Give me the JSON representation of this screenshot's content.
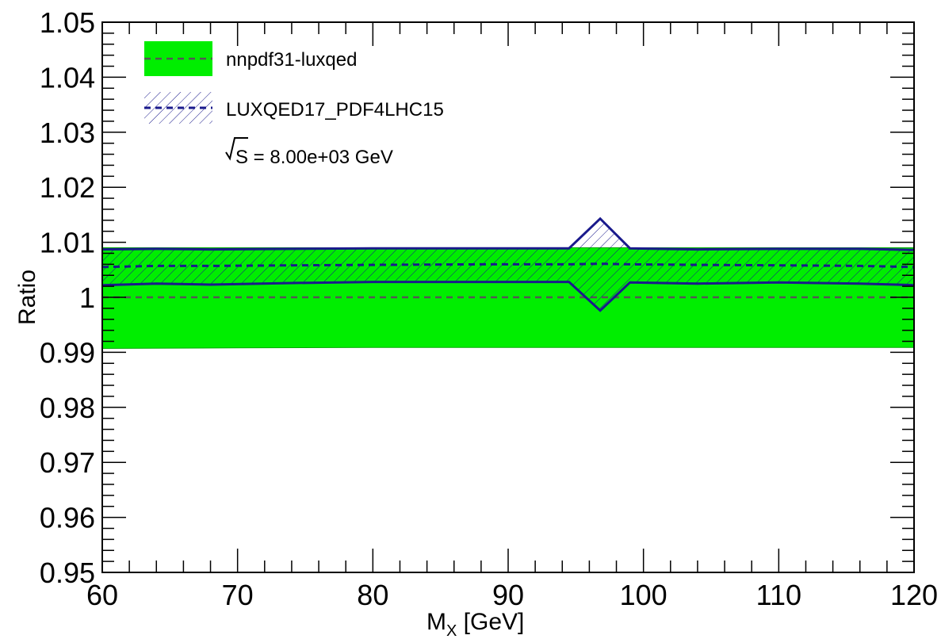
{
  "chart_data": {
    "type": "line",
    "xlabel_main": "M",
    "xlabel_sub": "X",
    "xlabel_rest": " [GeV]",
    "ylabel": "Ratio",
    "xlim": [
      60,
      120
    ],
    "ylim": [
      0.95,
      1.05
    ],
    "x_ticks": [
      60,
      70,
      80,
      90,
      100,
      110,
      120
    ],
    "x_tick_labels": [
      "60",
      "70",
      "80",
      "90",
      "100",
      "110",
      "120"
    ],
    "y_ticks": [
      0.95,
      0.96,
      0.97,
      0.98,
      0.99,
      1.0,
      1.01,
      1.02,
      1.03,
      1.04,
      1.05
    ],
    "y_tick_labels": [
      "0.95",
      "0.96",
      "0.97",
      "0.98",
      "0.99",
      "1",
      "1.01",
      "1.02",
      "1.03",
      "1.04",
      "1.05"
    ],
    "energy_label_root": "S",
    "energy_label_rest": " = 8.00e+03 GeV",
    "series": [
      {
        "name": "nnpdf31-luxqed",
        "style": "solid-band",
        "color": "#00ee00",
        "line_color": "#555555",
        "x": [
          60,
          70,
          80,
          90,
          100,
          110,
          120
        ],
        "central": [
          1.0,
          1.0,
          1.0,
          1.0,
          1.0,
          1.0,
          1.0
        ],
        "upper": [
          1.009,
          1.009,
          1.009,
          1.009,
          1.009,
          1.009,
          1.009
        ],
        "lower": [
          0.9907,
          0.9908,
          0.9909,
          0.9909,
          0.9909,
          0.9909,
          0.9909
        ]
      },
      {
        "name": "LUXQED17_PDF4LHC15",
        "style": "hatched-band",
        "color": "#1a1a8c",
        "x": [
          60,
          64,
          68,
          74,
          80,
          88,
          94.5,
          96.8,
          99,
          104,
          110,
          116,
          120
        ],
        "central": [
          1.0055,
          1.0057,
          1.0057,
          1.0058,
          1.0059,
          1.006,
          1.006,
          1.0061,
          1.006,
          1.0059,
          1.0058,
          1.0057,
          1.0055
        ],
        "upper": [
          1.0087,
          1.0088,
          1.0087,
          1.0088,
          1.0089,
          1.0089,
          1.0089,
          1.0143,
          1.0089,
          1.0087,
          1.0088,
          1.0088,
          1.0086
        ],
        "lower": [
          1.0022,
          1.0025,
          1.0023,
          1.0026,
          1.0028,
          1.0028,
          1.0028,
          0.9976,
          1.0027,
          1.0025,
          1.0027,
          1.0025,
          1.0022
        ]
      }
    ]
  }
}
